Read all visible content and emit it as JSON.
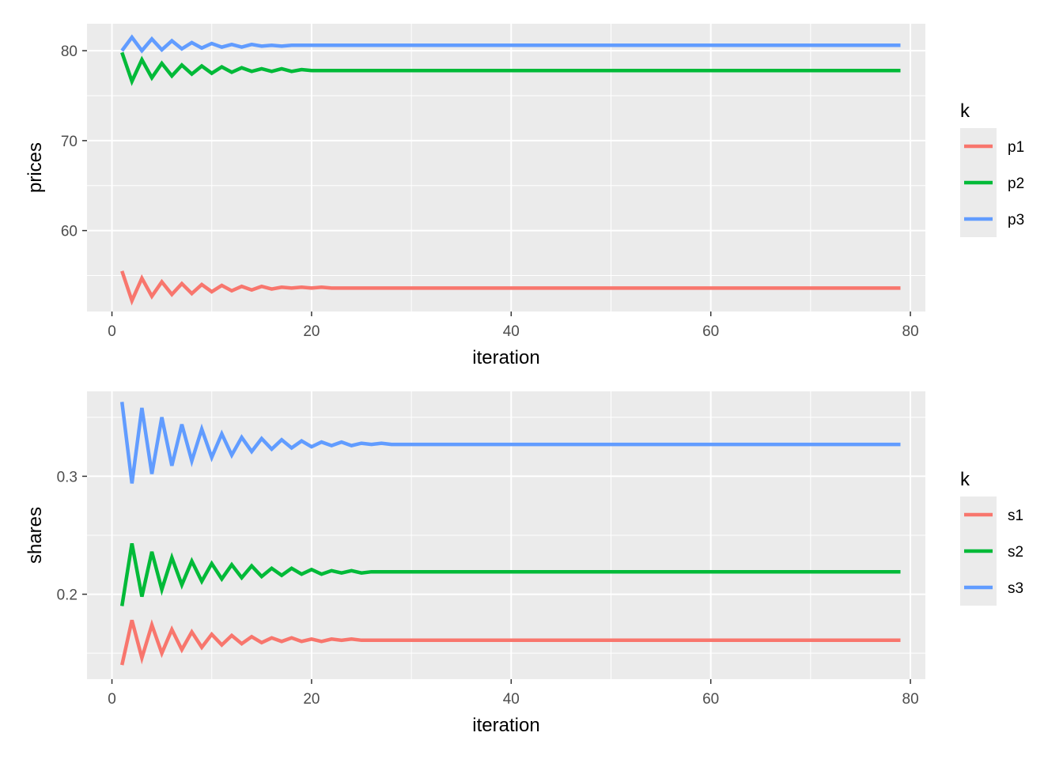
{
  "chart_data": [
    {
      "type": "line",
      "xlabel": "iteration",
      "ylabel": "prices",
      "xlim": [
        -2.5,
        81.5
      ],
      "ylim": [
        51.0,
        83.0
      ],
      "xticks": [
        0,
        20,
        40,
        60,
        80
      ],
      "xtick_labels": [
        "0",
        "20",
        "40",
        "60",
        "80"
      ],
      "yticks": [
        60,
        70,
        80
      ],
      "ytick_labels": [
        "60",
        "70",
        "80"
      ],
      "grid": true,
      "legend": {
        "title": "k",
        "position": "right"
      },
      "series": [
        {
          "name": "p1",
          "color": "#F8766D",
          "x": [
            1,
            2,
            3,
            4,
            5,
            6,
            7,
            8,
            9,
            10,
            11,
            12,
            13,
            14,
            15,
            16,
            17,
            18,
            19,
            20,
            21,
            22,
            23,
            24,
            25,
            26,
            27,
            28,
            30,
            35,
            40,
            50,
            60,
            70,
            79
          ],
          "y": [
            55.5,
            52.2,
            54.7,
            52.7,
            54.3,
            52.9,
            54.1,
            53.0,
            54.0,
            53.2,
            53.9,
            53.3,
            53.8,
            53.4,
            53.8,
            53.5,
            53.7,
            53.6,
            53.7,
            53.6,
            53.7,
            53.6,
            53.6,
            53.6,
            53.6,
            53.6,
            53.6,
            53.6,
            53.6,
            53.6,
            53.6,
            53.6,
            53.6,
            53.6,
            53.6
          ]
        },
        {
          "name": "p2",
          "color": "#00BA38",
          "x": [
            1,
            2,
            3,
            4,
            5,
            6,
            7,
            8,
            9,
            10,
            11,
            12,
            13,
            14,
            15,
            16,
            17,
            18,
            19,
            20,
            21,
            22,
            25,
            30,
            35,
            40,
            50,
            60,
            70,
            79
          ],
          "y": [
            79.8,
            76.6,
            79.0,
            77.0,
            78.6,
            77.2,
            78.4,
            77.4,
            78.3,
            77.5,
            78.2,
            77.6,
            78.1,
            77.7,
            78.0,
            77.7,
            78.0,
            77.7,
            77.9,
            77.8,
            77.8,
            77.8,
            77.8,
            77.8,
            77.8,
            77.8,
            77.8,
            77.8,
            77.8,
            77.8
          ]
        },
        {
          "name": "p3",
          "color": "#619CFF",
          "x": [
            1,
            2,
            3,
            4,
            5,
            6,
            7,
            8,
            9,
            10,
            11,
            12,
            13,
            14,
            15,
            16,
            17,
            18,
            19,
            20,
            25,
            30,
            35,
            40,
            50,
            60,
            70,
            79
          ],
          "y": [
            80.0,
            81.5,
            80.0,
            81.3,
            80.1,
            81.1,
            80.2,
            80.9,
            80.3,
            80.8,
            80.4,
            80.7,
            80.4,
            80.7,
            80.5,
            80.6,
            80.5,
            80.6,
            80.6,
            80.6,
            80.6,
            80.6,
            80.6,
            80.6,
            80.6,
            80.6,
            80.6,
            80.6
          ]
        }
      ]
    },
    {
      "type": "line",
      "xlabel": "iteration",
      "ylabel": "shares",
      "xlim": [
        -2.5,
        81.5
      ],
      "ylim": [
        0.128,
        0.372
      ],
      "xticks": [
        0,
        20,
        40,
        60,
        80
      ],
      "xtick_labels": [
        "0",
        "20",
        "40",
        "60",
        "80"
      ],
      "yticks": [
        0.2,
        0.3
      ],
      "ytick_labels": [
        "0.2",
        "0.3"
      ],
      "grid": true,
      "legend": {
        "title": "k",
        "position": "right"
      },
      "series": [
        {
          "name": "s1",
          "color": "#F8766D",
          "x": [
            1,
            2,
            3,
            4,
            5,
            6,
            7,
            8,
            9,
            10,
            11,
            12,
            13,
            14,
            15,
            16,
            17,
            18,
            19,
            20,
            21,
            22,
            23,
            24,
            25,
            26,
            27,
            28,
            30,
            35,
            40,
            50,
            60,
            70,
            79
          ],
          "y": [
            0.14,
            0.178,
            0.146,
            0.174,
            0.15,
            0.17,
            0.153,
            0.168,
            0.155,
            0.166,
            0.157,
            0.165,
            0.158,
            0.164,
            0.159,
            0.163,
            0.16,
            0.163,
            0.16,
            0.162,
            0.16,
            0.162,
            0.161,
            0.162,
            0.161,
            0.161,
            0.161,
            0.161,
            0.161,
            0.161,
            0.161,
            0.161,
            0.161,
            0.161,
            0.161
          ]
        },
        {
          "name": "s2",
          "color": "#00BA38",
          "x": [
            1,
            2,
            3,
            4,
            5,
            6,
            7,
            8,
            9,
            10,
            11,
            12,
            13,
            14,
            15,
            16,
            17,
            18,
            19,
            20,
            21,
            22,
            23,
            24,
            25,
            26,
            27,
            28,
            30,
            35,
            40,
            50,
            60,
            70,
            79
          ],
          "y": [
            0.19,
            0.243,
            0.198,
            0.236,
            0.204,
            0.231,
            0.208,
            0.228,
            0.211,
            0.226,
            0.213,
            0.225,
            0.214,
            0.224,
            0.215,
            0.222,
            0.216,
            0.222,
            0.217,
            0.221,
            0.217,
            0.22,
            0.218,
            0.22,
            0.218,
            0.219,
            0.219,
            0.219,
            0.219,
            0.219,
            0.219,
            0.219,
            0.219,
            0.219,
            0.219
          ]
        },
        {
          "name": "s3",
          "color": "#619CFF",
          "x": [
            1,
            2,
            3,
            4,
            5,
            6,
            7,
            8,
            9,
            10,
            11,
            12,
            13,
            14,
            15,
            16,
            17,
            18,
            19,
            20,
            21,
            22,
            23,
            24,
            25,
            26,
            27,
            28,
            30,
            35,
            40,
            50,
            60,
            70,
            79
          ],
          "y": [
            0.363,
            0.294,
            0.358,
            0.302,
            0.35,
            0.309,
            0.344,
            0.313,
            0.34,
            0.316,
            0.336,
            0.318,
            0.333,
            0.321,
            0.332,
            0.323,
            0.331,
            0.324,
            0.33,
            0.325,
            0.329,
            0.326,
            0.329,
            0.326,
            0.328,
            0.327,
            0.328,
            0.327,
            0.327,
            0.327,
            0.327,
            0.327,
            0.327,
            0.327,
            0.327
          ]
        }
      ]
    }
  ]
}
